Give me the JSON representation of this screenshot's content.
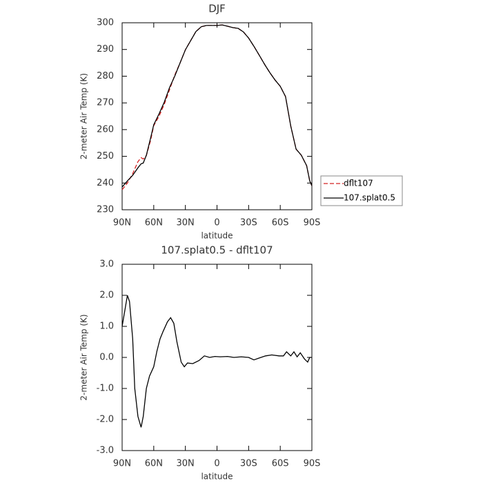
{
  "chart_data": [
    {
      "type": "line",
      "title": "DJF",
      "xlabel": "latitude",
      "ylabel": "2-meter Air Temp (K)",
      "x": [
        90,
        85,
        80,
        75,
        72,
        70,
        67,
        63,
        60,
        55,
        50,
        45,
        40,
        35,
        30,
        25,
        20,
        15,
        10,
        5,
        0,
        -5,
        -10,
        -15,
        -20,
        -25,
        -30,
        -35,
        -40,
        -45,
        -50,
        -55,
        -60,
        -65,
        -70,
        -75,
        -80,
        -85,
        -88,
        -90
      ],
      "series": [
        {
          "name": "dflt107",
          "color": "#d42020",
          "style": "dashed",
          "values": [
            237.5,
            240,
            243.5,
            248,
            249.5,
            249,
            250.3,
            256,
            261.5,
            265,
            269.5,
            275,
            280.5,
            285,
            289.9,
            293.3,
            296.7,
            298.5,
            299,
            299,
            299,
            299.2,
            298.7,
            298.2,
            297.9,
            296.6,
            294.3,
            291.2,
            287.9,
            284.5,
            281.4,
            278.6,
            276.2,
            272.4,
            261.3,
            252.7,
            250.4,
            246.5,
            240.8,
            239
          ]
        },
        {
          "name": "107.splat0.5",
          "color": "#000000",
          "style": "solid",
          "values": [
            238.5,
            240.8,
            242.9,
            245.7,
            247.2,
            247.5,
            250.4,
            256.9,
            261.8,
            265.9,
            270.3,
            275.8,
            280.1,
            285,
            289.9,
            293.3,
            296.7,
            298.5,
            299,
            299,
            299,
            299.2,
            298.7,
            298.2,
            297.9,
            296.6,
            294.3,
            291.2,
            287.9,
            284.5,
            281.4,
            278.6,
            276.2,
            272.4,
            261.3,
            252.7,
            250.4,
            246.5,
            240.8,
            239
          ]
        }
      ],
      "xlim": [
        90,
        -90
      ],
      "xticks": [
        {
          "value": 90,
          "label": "90N"
        },
        {
          "value": 60,
          "label": "60N"
        },
        {
          "value": 30,
          "label": "30N"
        },
        0,
        {
          "value": -30,
          "label": "30S"
        },
        {
          "value": -60,
          "label": "60S"
        },
        {
          "value": -90,
          "label": "90S"
        }
      ],
      "ylim": [
        230,
        300
      ],
      "yticks": [
        230,
        240,
        250,
        260,
        270,
        280,
        290,
        300
      ],
      "legend": "right"
    },
    {
      "type": "line",
      "title": "107.splat0.5 - dflt107",
      "xlabel": "latitude",
      "ylabel": "2-meter Air Temp (K)",
      "x": [
        90,
        87,
        85,
        83,
        80,
        78,
        75,
        72,
        70,
        67,
        64,
        60,
        57,
        54,
        51,
        47,
        44,
        41,
        38,
        34,
        31,
        28,
        23,
        17,
        12,
        7,
        2,
        -3,
        -10,
        -16,
        -23,
        -30,
        -35,
        -40,
        -46,
        -52,
        -59,
        -63,
        -66,
        -70,
        -73,
        -76,
        -79,
        -83,
        -86,
        -88,
        -90
      ],
      "values": [
        1.0,
        1.6,
        2.0,
        1.8,
        0.6,
        -1.0,
        -1.9,
        -2.25,
        -1.9,
        -1.0,
        -0.6,
        -0.3,
        0.2,
        0.6,
        0.85,
        1.15,
        1.28,
        1.1,
        0.5,
        -0.15,
        -0.3,
        -0.18,
        -0.2,
        -0.1,
        0.05,
        0.0,
        0.03,
        0.02,
        0.03,
        0.0,
        0.02,
        0.0,
        -0.08,
        -0.02,
        0.05,
        0.08,
        0.05,
        0.05,
        0.18,
        0.05,
        0.18,
        0.02,
        0.15,
        -0.05,
        -0.15,
        0.0,
        0.0
      ],
      "color": "#000000",
      "xlim": [
        90,
        -90
      ],
      "xticks": [
        {
          "value": 90,
          "label": "90N"
        },
        {
          "value": 60,
          "label": "60N"
        },
        {
          "value": 30,
          "label": "30N"
        },
        0,
        {
          "value": -30,
          "label": "30S"
        },
        {
          "value": -60,
          "label": "60S"
        },
        {
          "value": -90,
          "label": "90S"
        }
      ],
      "ylim": [
        -3,
        3
      ],
      "yticks": [
        {
          "value": -3,
          "label": "-3.0"
        },
        {
          "value": -2,
          "label": "-2.0"
        },
        {
          "value": -1,
          "label": "-1.0"
        },
        {
          "value": 0,
          "label": "0.0"
        },
        {
          "value": 1,
          "label": "1.0"
        },
        {
          "value": 2,
          "label": "2.0"
        },
        {
          "value": 3,
          "label": "3.0"
        }
      ]
    }
  ]
}
